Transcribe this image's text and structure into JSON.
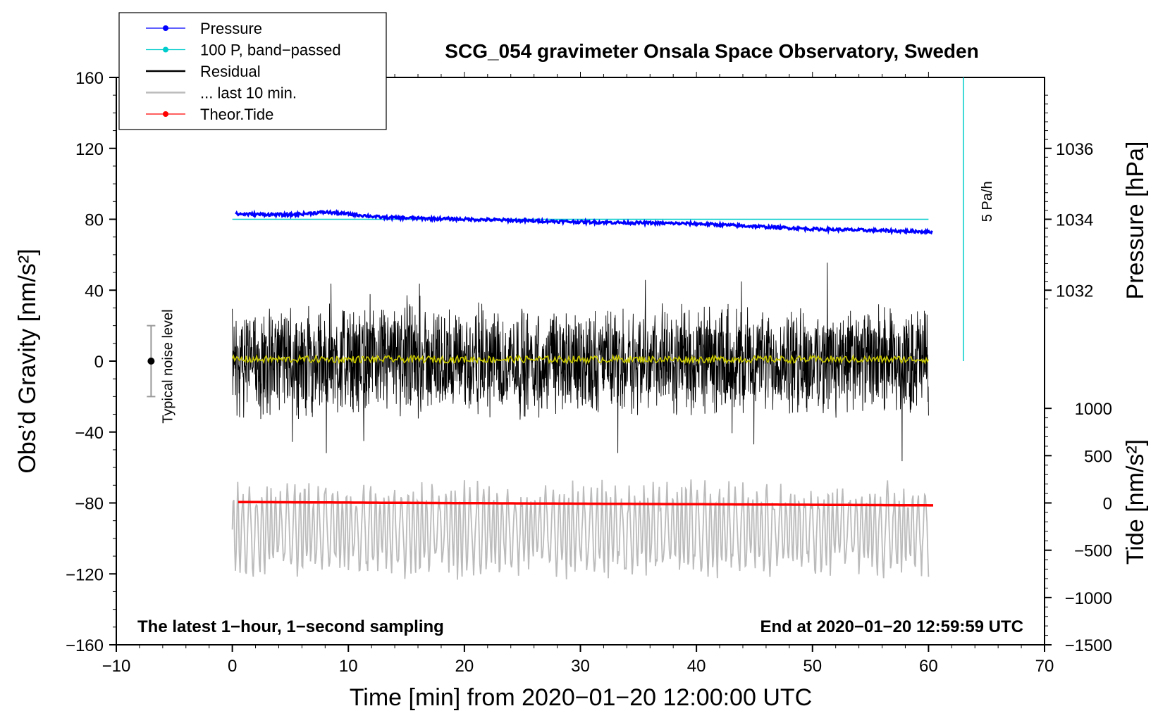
{
  "chart_data": {
    "type": "line",
    "title": "SCG_054 gravimeter Onsala Space Observatory, Sweden",
    "xlabel": "Time [min] from 2020−01−20 12:00:00 UTC",
    "ylabel_left": "Obs’d Gravity [nm/s²]",
    "ylabel_pressure": "Pressure [hPa]",
    "ylabel_tide": "Tide [nm/s²]",
    "xlim": [
      -10,
      70
    ],
    "ylim": [
      -160,
      160
    ],
    "x_ticks": [
      -10,
      0,
      10,
      20,
      30,
      40,
      50,
      60,
      70
    ],
    "x_tick_labels": [
      "−10",
      "0",
      "10",
      "20",
      "30",
      "40",
      "50",
      "60",
      "70"
    ],
    "y_ticks": [
      -160,
      -120,
      -80,
      -40,
      0,
      40,
      80,
      120,
      160
    ],
    "y_tick_labels": [
      "−160",
      "−120",
      "−80",
      "−40",
      "0",
      "40",
      "80",
      "120",
      "160"
    ],
    "pressure_ticks": [
      1032,
      1034,
      1036
    ],
    "pressure_tick_labels": [
      "1032",
      "1034",
      "1036"
    ],
    "tide_ticks": [
      -1500,
      -1000,
      -500,
      0,
      500,
      1000
    ],
    "tide_tick_labels": [
      "−1500",
      "−1000",
      "−500",
      "0",
      "500",
      "1000"
    ],
    "legend": [
      {
        "name": "Pressure",
        "color": "#0000ff",
        "marker": "dot"
      },
      {
        "name": "100 P, band−passed",
        "color": "#00cccc",
        "marker": "dot"
      },
      {
        "name": "Residual",
        "color": "#000000",
        "marker": "line"
      },
      {
        "name": "... last 10 min.",
        "color": "#bbbbbb",
        "marker": "line"
      },
      {
        "name": "Theor.Tide",
        "color": "#ff0000",
        "marker": "dot"
      }
    ],
    "series": [
      {
        "name": "Pressure",
        "color": "#0000ff",
        "x": [
          0,
          5,
          8,
          10,
          13,
          20,
          30,
          40,
          50,
          60
        ],
        "y_plot": [
          83,
          82.5,
          84,
          83,
          81,
          80,
          78.5,
          77.5,
          74.5,
          73
        ]
      },
      {
        "name": "100 P, band−passed",
        "color": "#00cccc",
        "x": [
          0,
          60
        ],
        "y_plot": [
          80,
          80
        ]
      },
      {
        "name": "Residual",
        "color": "#000000",
        "x_range": [
          0,
          60
        ],
        "center": 0,
        "amplitude": 28
      },
      {
        "name": "Residual smoothed",
        "color": "#c8c800",
        "x_range": [
          0,
          60
        ],
        "center": 1,
        "amplitude": 2
      },
      {
        "name": "... last 10 min.",
        "color": "#bbbbbb",
        "x_range": [
          0,
          60
        ],
        "center": -95,
        "amplitude": 30
      },
      {
        "name": "Theor.Tide",
        "color": "#ff0000",
        "x": [
          0,
          60
        ],
        "y_tide": [
          10,
          -25
        ]
      }
    ],
    "scale_bar": {
      "label": "5 Pa/h",
      "x": 63,
      "y_from": 0,
      "y_to": 160
    },
    "noise_bar": {
      "label": "Typical noise level",
      "x": -7,
      "center": 0,
      "half_range": 20
    },
    "annotations": {
      "bottom_left": "The latest 1−hour, 1−second sampling",
      "bottom_right": "End at 2020−01−20 12:59:59 UTC"
    }
  },
  "colors": {
    "pressure": "#0000ff",
    "bandpassed": "#00cccc",
    "residual": "#000000",
    "residual_smoothed": "#c8c800",
    "last10": "#bbbbbb",
    "tide": "#ff0000"
  }
}
